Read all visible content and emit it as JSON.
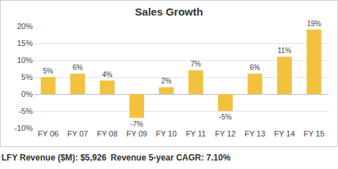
{
  "chart_data": {
    "type": "bar",
    "title": "Sales Growth",
    "categories": [
      "FY 06",
      "FY 07",
      "FY 08",
      "FY 09",
      "FY 10",
      "FY 11",
      "FY 12",
      "FY 13",
      "FY 14",
      "FY 15"
    ],
    "values": [
      5,
      6,
      4,
      -7,
      2,
      7,
      -5,
      6,
      11,
      19
    ],
    "value_labels": [
      "5%",
      "6%",
      "4%",
      "-7%",
      "2%",
      "7%",
      "-5%",
      "6%",
      "11%",
      "19%"
    ],
    "data_labels": true,
    "color": "#f2c23e",
    "ylim": [
      -10,
      20
    ],
    "yticks": [
      {
        "value": -10,
        "label": "-10%"
      },
      {
        "value": -5,
        "label": "-5%"
      },
      {
        "value": 0,
        "label": "0%"
      },
      {
        "value": 5,
        "label": "5%"
      },
      {
        "value": 10,
        "label": "10%"
      },
      {
        "value": 15,
        "label": "15%"
      },
      {
        "value": 20,
        "label": "20%"
      }
    ],
    "grid": true,
    "annotations": [
      "LFY Revenue ($M): $5,926",
      "Revenue 5-year CAGR: 7.10%"
    ]
  }
}
